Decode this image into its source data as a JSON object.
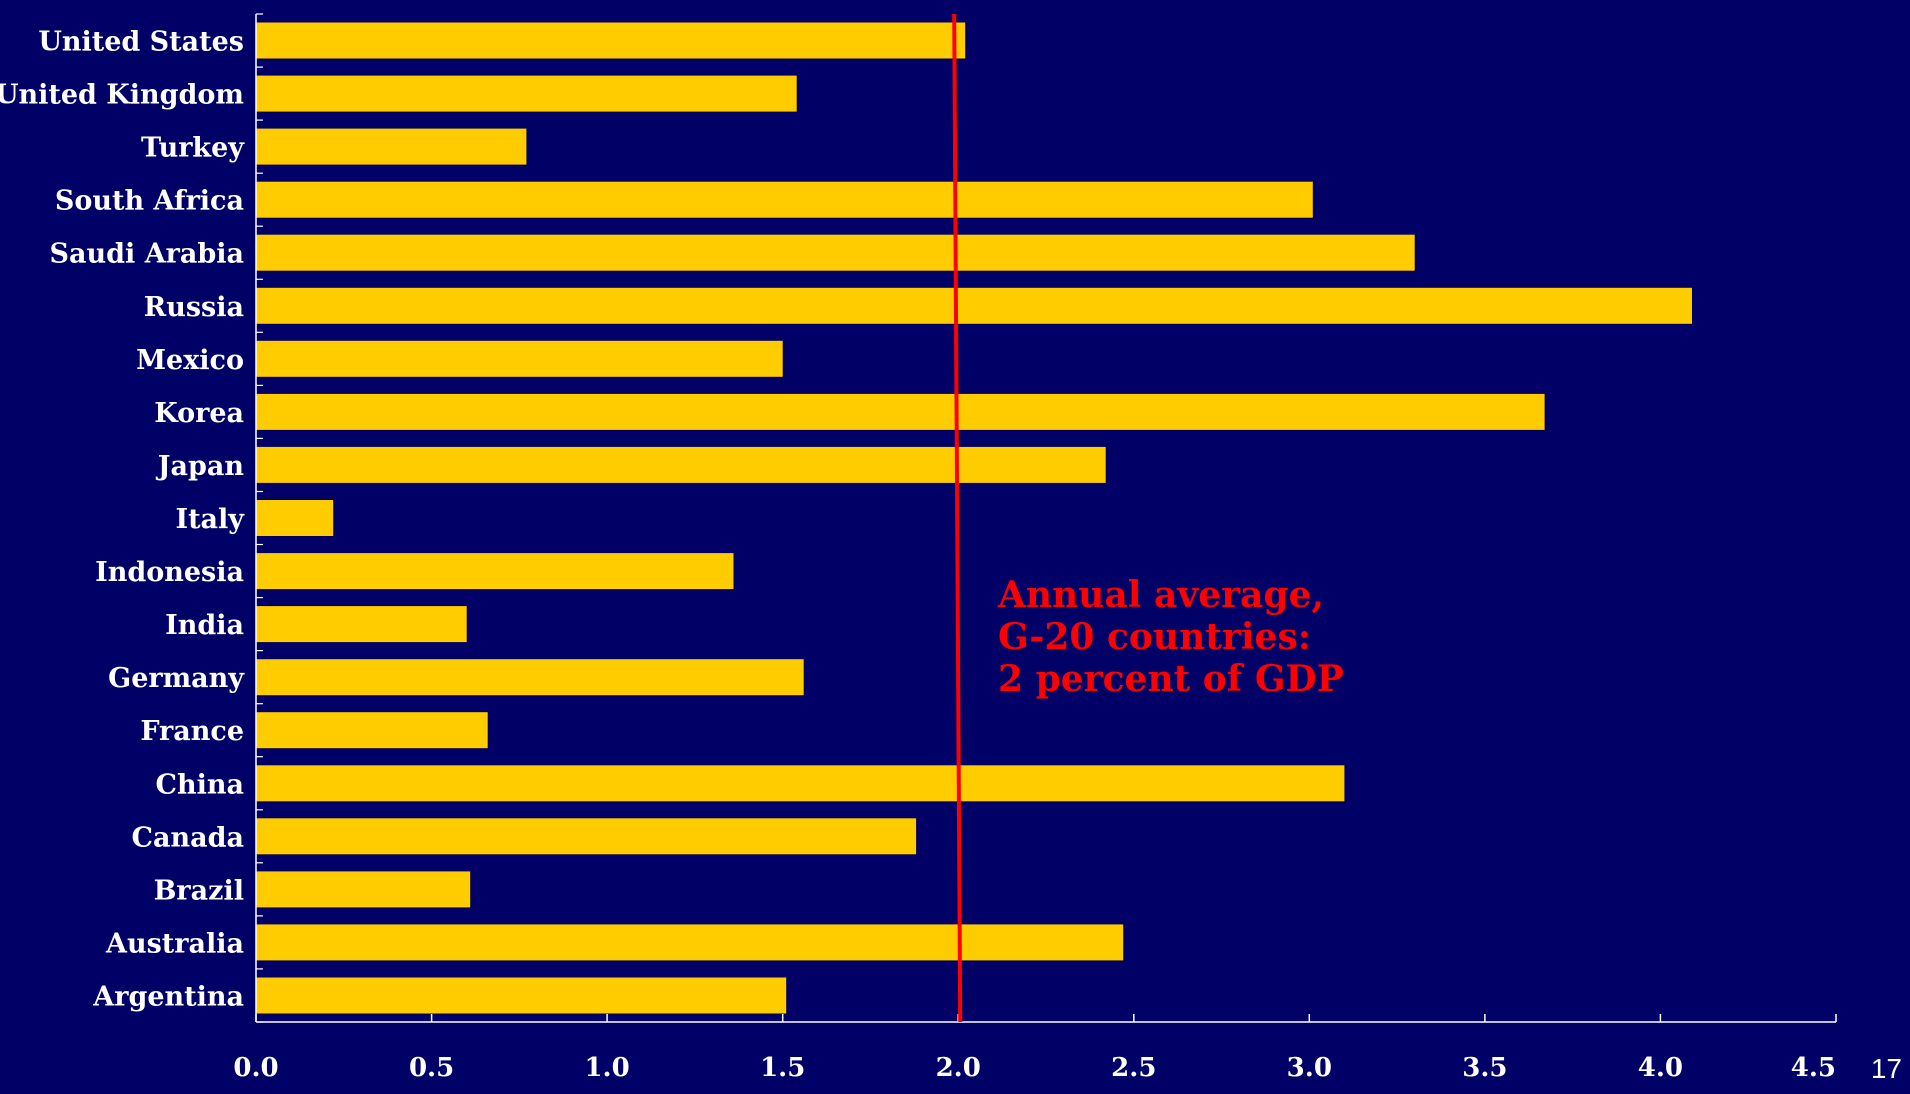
{
  "chart_data": {
    "type": "bar",
    "orientation": "horizontal",
    "categories": [
      "United States",
      "United Kingdom",
      "Turkey",
      "South Africa",
      "Saudi Arabia",
      "Russia",
      "Mexico",
      "Korea",
      "Japan",
      "Italy",
      "Indonesia",
      "India",
      "Germany",
      "France",
      "China",
      "Canada",
      "Brazil",
      "Australia",
      "Argentina"
    ],
    "values": [
      2.02,
      1.54,
      0.77,
      3.01,
      3.3,
      4.09,
      1.5,
      3.67,
      2.42,
      0.22,
      1.36,
      0.6,
      1.56,
      0.66,
      3.1,
      1.88,
      0.61,
      2.47,
      1.51
    ],
    "xlim": [
      0,
      4.5
    ],
    "x_ticks": [
      "0.0",
      "0.5",
      "1.0",
      "1.5",
      "2.0",
      "2.5",
      "3.0",
      "3.5",
      "4.0",
      "4.5"
    ],
    "grid": false,
    "reference_line": {
      "value": 2.0,
      "annotation": [
        "Annual average,",
        "G-20 countries:",
        "2 percent of GDP"
      ]
    },
    "colors": {
      "background": "#000066",
      "bar": "#ffcc00",
      "reference_line": "#ff0000",
      "annotation": "#ff0000",
      "axis": "#ffffff",
      "label": "#ffffff"
    }
  },
  "slide_number": "17"
}
